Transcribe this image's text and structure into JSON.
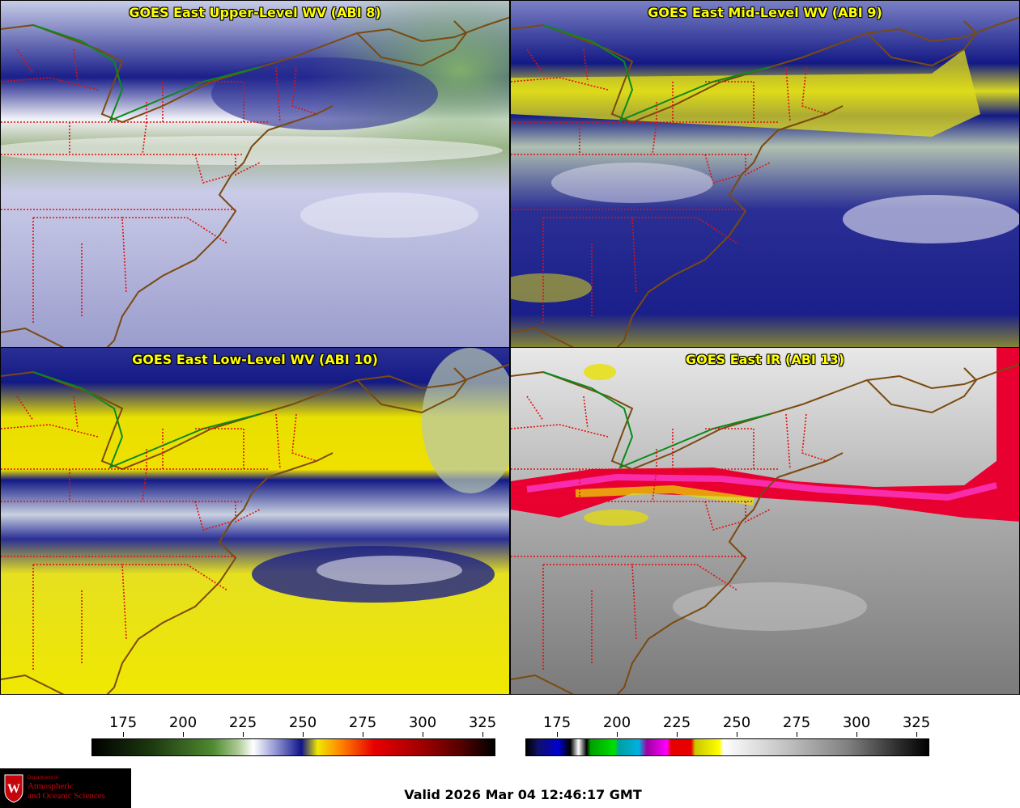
{
  "panels": [
    {
      "title": "GOES East Upper-Level WV (ABI 8)"
    },
    {
      "title": "GOES East Mid-Level WV (ABI 9)"
    },
    {
      "title": "GOES East Low-Level WV (ABI 10)"
    },
    {
      "title": "GOES East IR (ABI 13)"
    }
  ],
  "colorbars": {
    "wv": {
      "ticks": [
        "175",
        "200",
        "225",
        "250",
        "275",
        "300",
        "325"
      ]
    },
    "ir": {
      "ticks": [
        "175",
        "200",
        "225",
        "250",
        "275",
        "300",
        "325"
      ]
    }
  },
  "logo": {
    "line1": "Department of",
    "line2": "Atmospheric",
    "line3": "and Oceanic Sciences",
    "seal_letter": "W"
  },
  "valid_time": "Valid 2026 Mar 04 12:46:17 GMT"
}
